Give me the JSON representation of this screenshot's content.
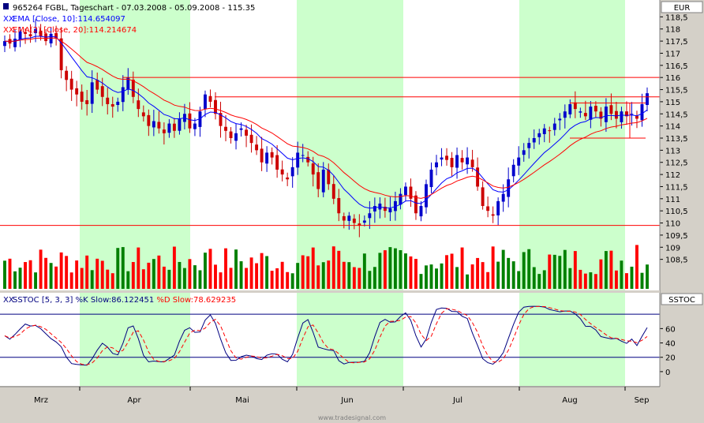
{
  "header": {
    "title": "965264  FGBL, Tageschart - 07.03.2008 - 05.09.2008 - 115.35",
    "legend": [
      {
        "prefix": "XX",
        "label": "EMA [Close, 10]:114.654097",
        "color": "#0000ff"
      },
      {
        "prefix": "XX",
        "label": "EMA(2) [Close, 20]:114.214674",
        "color": "#ff0000"
      }
    ],
    "currency": "EUR"
  },
  "lower_panel": {
    "label_prefix": "XX",
    "label_main": "SSTOC [5, 3, 3] %K Slow:86.122451 ",
    "label_d": "%D Slow:78.629235",
    "tag": "SSTOC"
  },
  "footer": {
    "watermark": "www.tradesignal.com"
  },
  "colors": {
    "up": "#0000cc",
    "down": "#cc0000",
    "vol_up": "#008000",
    "vol_down": "#ff0000",
    "shade": "#ccffcc",
    "bg": "#ffffff",
    "panel": "#d4d0c8"
  },
  "chart_data": [
    {
      "type": "candlestick",
      "title": "965264  FGBL, Tageschart - 07.03.2008 - 05.09.2008 - 115.35",
      "y_ticks": [
        "108,5",
        "109",
        "109,5",
        "110",
        "110,5",
        "111",
        "111,5",
        "112",
        "112,5",
        "113",
        "113,5",
        "114",
        "114,5",
        "115",
        "115,5",
        "116",
        "116,5",
        "117",
        "117,5",
        "118",
        "118,5"
      ],
      "ylim": [
        108,
        119
      ],
      "x_ticks": [
        "Mrz",
        "Apr",
        "Mai",
        "Jun",
        "Jul",
        "Aug",
        "Sep"
      ],
      "close_series": [
        117.5,
        117.4,
        117.6,
        117.9,
        117.8,
        117.7,
        118.0,
        117.7,
        117.5,
        117.8,
        117.6,
        116.3,
        115.9,
        115.5,
        115.3,
        115.0,
        114.9,
        115.8,
        115.5,
        115.2,
        114.9,
        114.8,
        115.0,
        115.6,
        116.0,
        115.2,
        114.7,
        114.4,
        114.0,
        114.2,
        113.9,
        113.7,
        114.1,
        113.8,
        114.3,
        114.5,
        113.9,
        114.1,
        114.6,
        115.3,
        115.0,
        114.5,
        114.0,
        113.8,
        113.5,
        113.7,
        113.9,
        113.6,
        113.3,
        113.0,
        112.5,
        112.9,
        112.7,
        112.2,
        112.0,
        111.8,
        112.3,
        112.9,
        112.8,
        112.5,
        112.0,
        111.4,
        112.2,
        111.6,
        111.0,
        110.4,
        110.1,
        110.3,
        110.0,
        109.9,
        110.1,
        110.4,
        110.7,
        110.8,
        110.5,
        110.6,
        110.9,
        111.2,
        111.5,
        111.0,
        110.4,
        110.7,
        111.6,
        112.2,
        112.5,
        112.7,
        112.6,
        112.3,
        112.8,
        112.5,
        112.7,
        112.3,
        111.5,
        110.7,
        110.5,
        110.3,
        110.9,
        111.2,
        111.8,
        112.4,
        112.7,
        113.0,
        113.3,
        113.5,
        113.7,
        113.9,
        113.8,
        114.1,
        114.3,
        114.6,
        114.9,
        114.7,
        114.6,
        114.4,
        114.8,
        114.6,
        114.3,
        114.8,
        114.5,
        114.3,
        114.6,
        114.4,
        114.5,
        114.3,
        114.9,
        115.35
      ],
      "ema10_last": 114.654097,
      "ema20_last": 114.214674,
      "horizontal_lines": [
        116.0,
        115.2,
        113.5,
        109.9
      ],
      "highlight_bands": [
        [
          "Mrz end",
          "Apr end"
        ],
        [
          "May end",
          "Jun"
        ],
        [
          "Jul end",
          "Sep"
        ]
      ]
    },
    {
      "type": "line",
      "title": "SSTOC [5, 3, 3]",
      "y_ticks": [
        "0",
        "20",
        "40",
        "60"
      ],
      "ylim": [
        -10,
        100
      ],
      "levels": [
        80,
        20
      ],
      "series": [
        {
          "name": "%K Slow",
          "last": 86.122451
        },
        {
          "name": "%D Slow",
          "last": 78.629235
        }
      ]
    }
  ]
}
